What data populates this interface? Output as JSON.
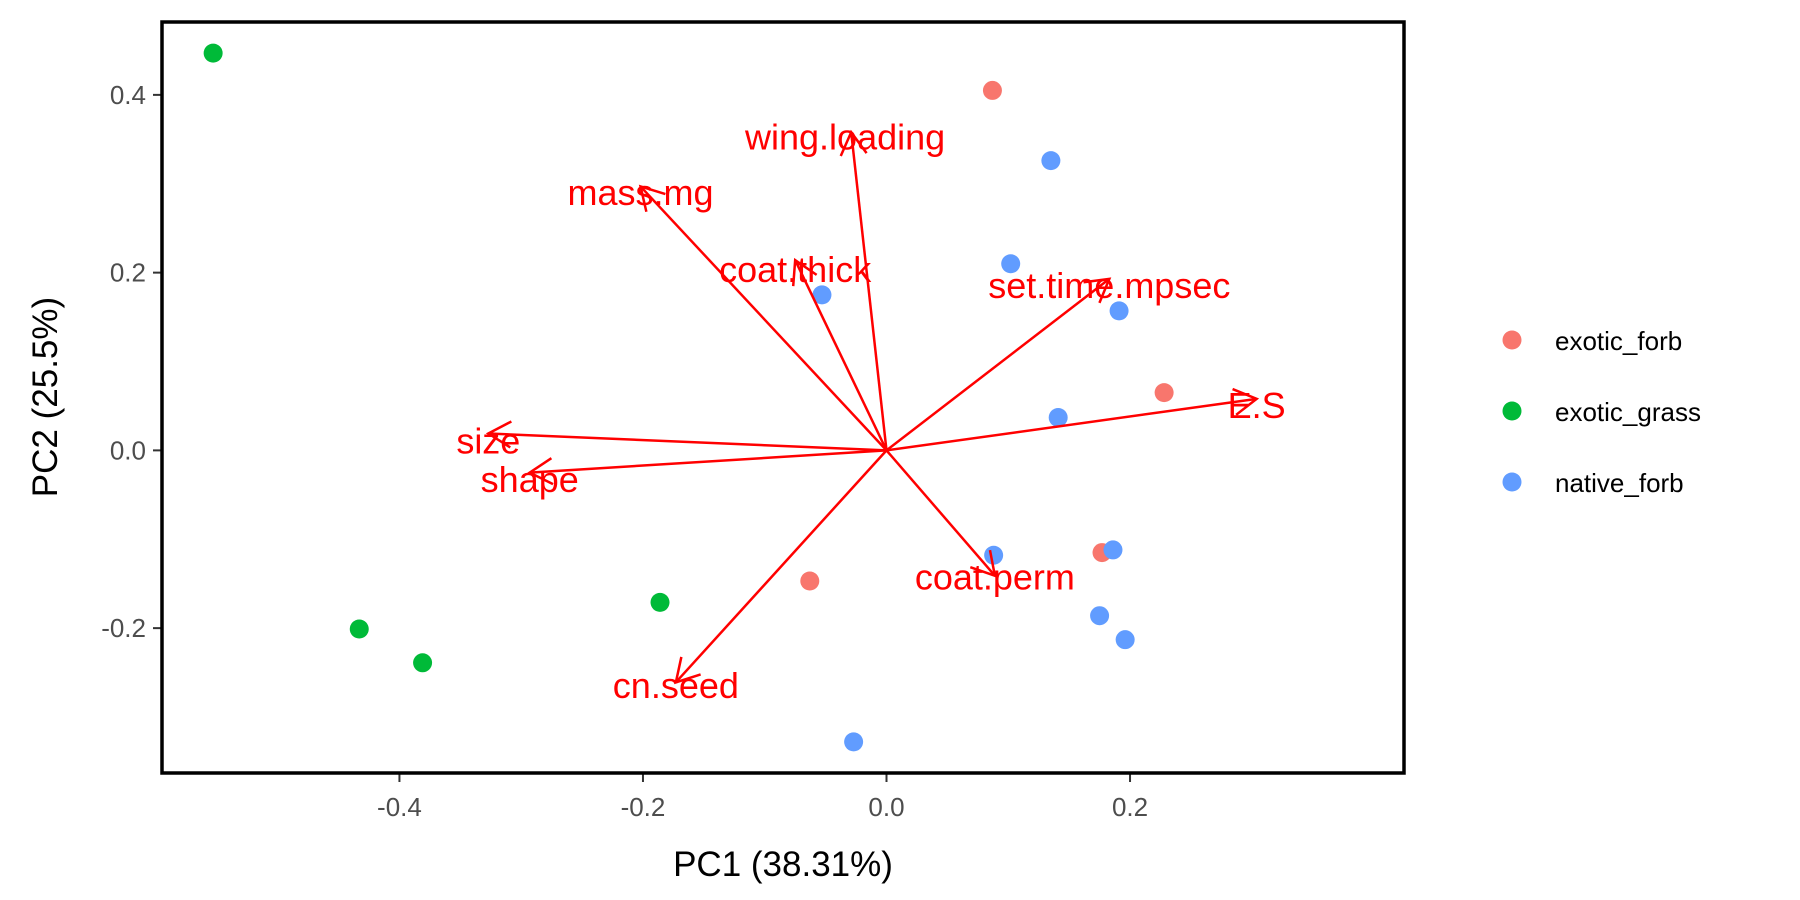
{
  "chart_data": {
    "type": "scatter",
    "title": "",
    "xlabel": "PC1 (38.31%)",
    "ylabel": "PC2 (25.5%)",
    "xlim": [
      -0.595,
      0.425
    ],
    "ylim": [
      -0.363,
      0.482
    ],
    "x_ticks": [
      {
        "value": -0.4,
        "label": "-0.4"
      },
      {
        "value": -0.2,
        "label": "-0.2"
      },
      {
        "value": 0.0,
        "label": "0.0"
      },
      {
        "value": 0.2,
        "label": "0.2"
      }
    ],
    "y_ticks": [
      {
        "value": -0.2,
        "label": "-0.2"
      },
      {
        "value": 0.0,
        "label": "0.0"
      },
      {
        "value": 0.2,
        "label": "0.2"
      },
      {
        "value": 0.4,
        "label": "0.4"
      }
    ],
    "grid": false,
    "legend": {
      "position": "right"
    },
    "series": [
      {
        "name": "exotic_forb",
        "color": "#F8766D",
        "points": [
          [
            0.087,
            0.405
          ],
          [
            0.228,
            0.065
          ],
          [
            0.177,
            -0.115
          ],
          [
            -0.063,
            -0.147
          ]
        ]
      },
      {
        "name": "exotic_grass",
        "color": "#00BA38",
        "points": [
          [
            -0.553,
            0.447
          ],
          [
            -0.433,
            -0.201
          ],
          [
            -0.381,
            -0.239
          ],
          [
            -0.186,
            -0.171
          ]
        ]
      },
      {
        "name": "native_forb",
        "color": "#619CFF",
        "points": [
          [
            0.135,
            0.326
          ],
          [
            0.102,
            0.21
          ],
          [
            -0.053,
            0.175
          ],
          [
            0.191,
            0.157
          ],
          [
            0.141,
            0.037
          ],
          [
            0.088,
            -0.118
          ],
          [
            0.186,
            -0.112
          ],
          [
            0.175,
            -0.186
          ],
          [
            0.196,
            -0.213
          ],
          [
            -0.027,
            -0.328
          ]
        ]
      }
    ],
    "loadings": {
      "color": "#FF0000",
      "arrows": [
        {
          "name": "wing.loading",
          "x": -0.029,
          "y": 0.358,
          "label_x": -0.034,
          "label_y": 0.353
        },
        {
          "name": "mass.mg",
          "x": -0.202,
          "y": 0.297,
          "label_x": -0.202,
          "label_y": 0.291
        },
        {
          "name": "coat.thick",
          "x": -0.075,
          "y": 0.214,
          "label_x": -0.075,
          "label_y": 0.204
        },
        {
          "name": "set.time.mpsec",
          "x": 0.183,
          "y": 0.193,
          "label_x": 0.183,
          "label_y": 0.186
        },
        {
          "name": "E.S",
          "x": 0.304,
          "y": 0.058,
          "label_x": 0.304,
          "label_y": 0.051
        },
        {
          "name": "size",
          "x": -0.327,
          "y": 0.019,
          "label_x": -0.327,
          "label_y": 0.011
        },
        {
          "name": "shape",
          "x": -0.293,
          "y": -0.025,
          "label_x": -0.293,
          "label_y": -0.032
        },
        {
          "name": "coat.perm",
          "x": 0.089,
          "y": -0.141,
          "label_x": 0.089,
          "label_y": -0.142
        },
        {
          "name": "cn.seed",
          "x": -0.173,
          "y": -0.261,
          "label_x": -0.173,
          "label_y": -0.264
        }
      ]
    }
  }
}
